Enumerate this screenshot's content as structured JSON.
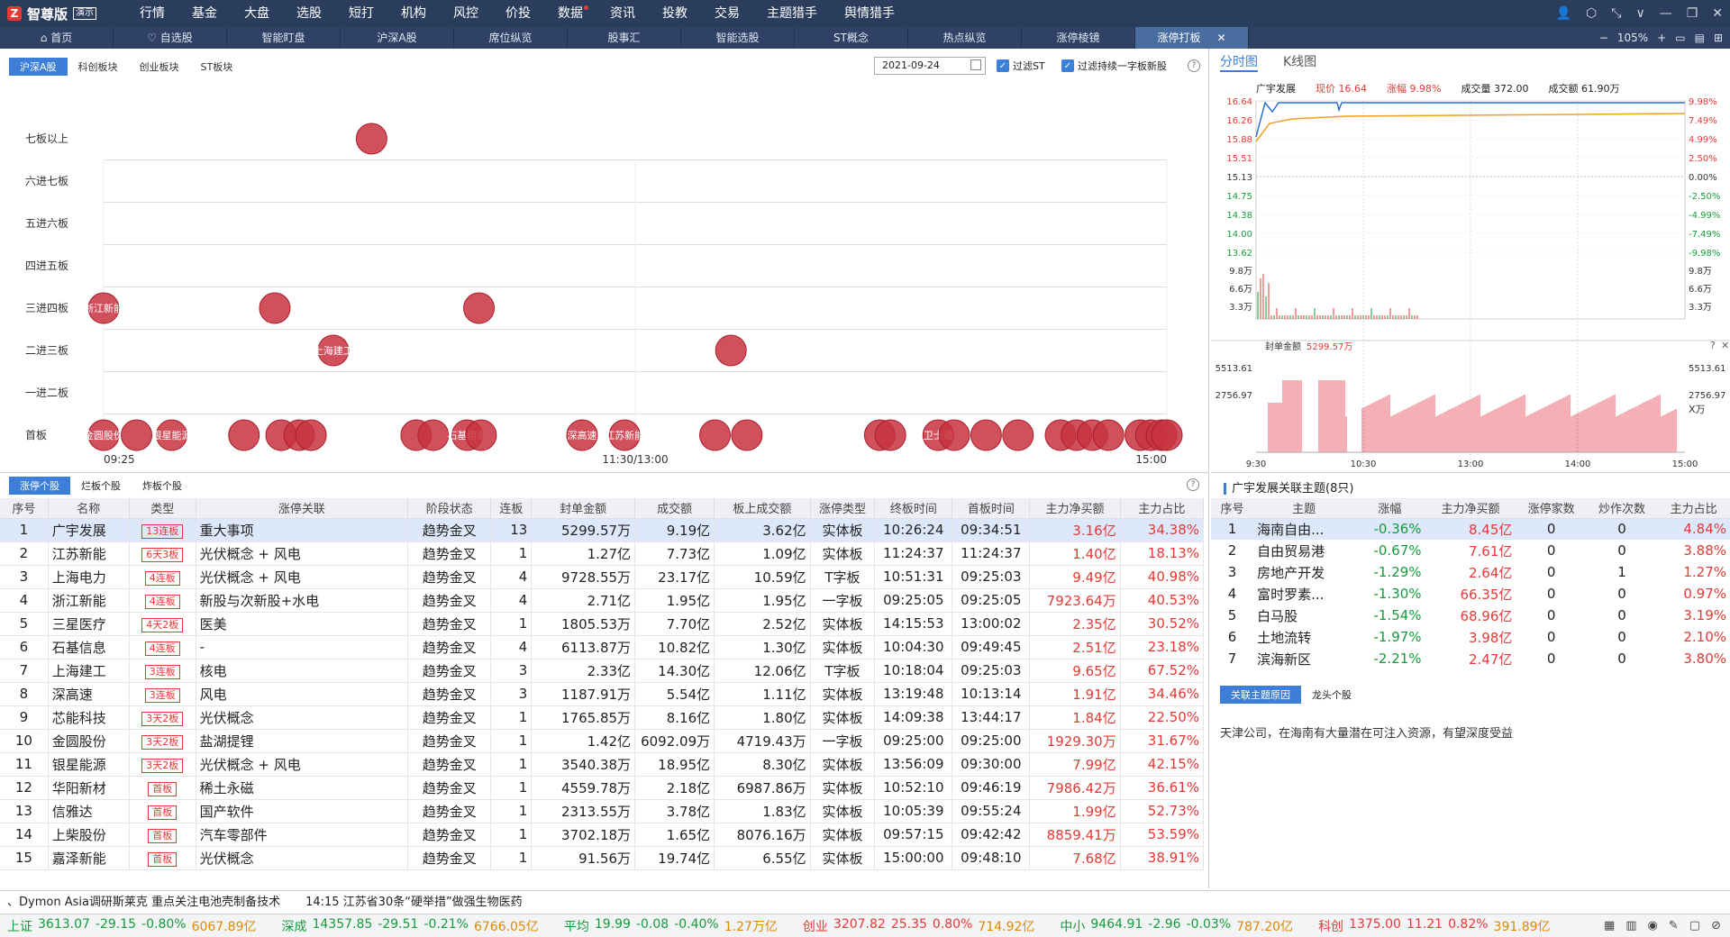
{
  "app": {
    "logo_mark": "Z",
    "name": "智尊版",
    "demo": "演示",
    "menu": [
      "行情",
      "基金",
      "大盘",
      "选股",
      "短打",
      "机构",
      "风控",
      "价投",
      "数据",
      "资讯",
      "投教",
      "交易",
      "主题猎手",
      "舆情猎手"
    ],
    "menu_dot_index": 8
  },
  "tabs": [
    {
      "label": "首页",
      "icon": "home-icon"
    },
    {
      "label": "自选股",
      "icon": "heart-icon"
    },
    {
      "label": "智能盯盘"
    },
    {
      "label": "沪深A股"
    },
    {
      "label": "席位纵览"
    },
    {
      "label": "股事汇"
    },
    {
      "label": "智能选股"
    },
    {
      "label": "ST概念"
    },
    {
      "label": "热点纵览"
    },
    {
      "label": "涨停棱镜"
    },
    {
      "label": "涨停打板",
      "active": true,
      "close": "✕"
    }
  ],
  "zoom": "105%",
  "board": {
    "subtabs": [
      "沪深A股",
      "科创板块",
      "创业板块",
      "ST板块"
    ],
    "date": "2021-09-24",
    "filter1": "过滤ST",
    "filter2": "过滤持续一字板新股",
    "levels": [
      "七板以上",
      "六进七板",
      "五进六板",
      "四进五板",
      "三进四板",
      "二进三板",
      "一进二板",
      "首板"
    ],
    "time_axis": [
      "09:25",
      "11:30/13:00",
      "15:00"
    ],
    "bubbles": [
      {
        "level": 0,
        "t": 0.252
      },
      {
        "level": 4,
        "t": 0.0,
        "label": "浙江新能"
      },
      {
        "level": 4,
        "t": 0.161
      },
      {
        "level": 4,
        "t": 0.353
      },
      {
        "level": 5,
        "t": 0.216,
        "label": "上海建工"
      },
      {
        "level": 5,
        "t": 0.59
      },
      {
        "level": 7,
        "t": 0.0,
        "label": "金圆股份"
      },
      {
        "level": 7,
        "t": 0.031
      },
      {
        "level": 7,
        "t": 0.064,
        "label": "银星能源"
      },
      {
        "level": 7,
        "t": 0.132
      },
      {
        "level": 7,
        "t": 0.167
      },
      {
        "level": 7,
        "t": 0.184
      },
      {
        "level": 7,
        "t": 0.195
      },
      {
        "level": 7,
        "t": 0.294
      },
      {
        "level": 7,
        "t": 0.31
      },
      {
        "level": 7,
        "t": 0.342,
        "label": "石基信息"
      },
      {
        "level": 7,
        "t": 0.355
      },
      {
        "level": 7,
        "t": 0.45,
        "label": "深高速"
      },
      {
        "level": 7,
        "t": 0.49,
        "label": "江苏新能"
      },
      {
        "level": 7,
        "t": 0.575
      },
      {
        "level": 7,
        "t": 0.605
      },
      {
        "level": 7,
        "t": 0.73
      },
      {
        "level": 7,
        "t": 0.74
      },
      {
        "level": 7,
        "t": 0.785,
        "label": "卫士通"
      },
      {
        "level": 7,
        "t": 0.8
      },
      {
        "level": 7,
        "t": 0.83
      },
      {
        "level": 7,
        "t": 0.86
      },
      {
        "level": 7,
        "t": 0.9
      },
      {
        "level": 7,
        "t": 0.915
      },
      {
        "level": 7,
        "t": 0.93
      },
      {
        "level": 7,
        "t": 0.945
      },
      {
        "level": 7,
        "t": 0.975
      },
      {
        "level": 7,
        "t": 0.985
      },
      {
        "level": 7,
        "t": 0.995
      },
      {
        "level": 7,
        "t": 1.0
      }
    ]
  },
  "fenshi": {
    "tabs": [
      "分时图",
      "K线图"
    ],
    "stock": "广宇发展",
    "price_label": "现价 16.64",
    "chg_label": "涨幅 9.98%",
    "vol_label": "成交量 372.00",
    "amt_label": "成交额 61.90万",
    "price_ticks": [
      "16.64",
      "16.26",
      "15.88",
      "15.51",
      "15.13",
      "14.75",
      "14.38",
      "14.00",
      "13.62"
    ],
    "pct_ticks": [
      "9.98%",
      "7.49%",
      "4.99%",
      "2.50%",
      "0.00%",
      "-2.50%",
      "-4.99%",
      "-7.49%",
      "-9.98%"
    ],
    "vol_ticks": [
      "9.8万",
      "6.6万",
      "3.3万"
    ],
    "seal_label": "封单金额",
    "seal_value": "5299.57万",
    "seal_ticks": [
      "5513.61",
      "2756.97"
    ],
    "seal_unit": "X万",
    "time_ticks": [
      "9:30",
      "10:30",
      "13:00",
      "14:00",
      "15:00"
    ]
  },
  "limitup": {
    "tabs": [
      "涨停个股",
      "烂板个股",
      "炸板个股"
    ],
    "headers": [
      "序号",
      "名称",
      "类型",
      "涨停关联",
      "阶段状态",
      "连板",
      "封单金额",
      "成交额",
      "板上成交额",
      "涨停类型",
      "终板时间",
      "首板时间",
      "主力净买额",
      "主力占比"
    ],
    "rows": [
      [
        "1",
        "广宇发展",
        "13连板",
        "重大事项",
        "趋势金叉",
        "13",
        "5299.57万",
        "9.19亿",
        "3.62亿",
        "实体板",
        "10:26:24",
        "09:34:51",
        "3.16亿",
        "34.38%"
      ],
      [
        "2",
        "江苏新能",
        "6天3板",
        "光伏概念 + 风电",
        "趋势金叉",
        "1",
        "1.27亿",
        "7.73亿",
        "1.09亿",
        "实体板",
        "11:24:37",
        "11:24:37",
        "1.40亿",
        "18.13%"
      ],
      [
        "3",
        "上海电力",
        "4连板",
        "光伏概念 + 风电",
        "趋势金叉",
        "4",
        "9728.55万",
        "23.17亿",
        "10.59亿",
        "T字板",
        "10:51:31",
        "09:25:03",
        "9.49亿",
        "40.98%"
      ],
      [
        "4",
        "浙江新能",
        "4连板",
        "新股与次新股+水电",
        "趋势金叉",
        "4",
        "2.71亿",
        "1.95亿",
        "1.95亿",
        "一字板",
        "09:25:05",
        "09:25:05",
        "7923.64万",
        "40.53%"
      ],
      [
        "5",
        "三星医疗",
        "4天2板",
        "医美",
        "趋势金叉",
        "1",
        "1805.53万",
        "7.70亿",
        "2.52亿",
        "实体板",
        "14:15:53",
        "13:00:02",
        "2.35亿",
        "30.52%"
      ],
      [
        "6",
        "石基信息",
        "4连板",
        "-",
        "趋势金叉",
        "4",
        "6113.87万",
        "10.82亿",
        "1.30亿",
        "实体板",
        "10:04:30",
        "09:49:45",
        "2.51亿",
        "23.18%"
      ],
      [
        "7",
        "上海建工",
        "3连板",
        "核电",
        "趋势金叉",
        "3",
        "2.33亿",
        "14.30亿",
        "12.06亿",
        "T字板",
        "10:18:04",
        "09:25:03",
        "9.65亿",
        "67.52%"
      ],
      [
        "8",
        "深高速",
        "3连板",
        "风电",
        "趋势金叉",
        "3",
        "1187.91万",
        "5.54亿",
        "1.11亿",
        "实体板",
        "13:19:48",
        "10:13:14",
        "1.91亿",
        "34.46%"
      ],
      [
        "9",
        "芯能科技",
        "3天2板",
        "光伏概念",
        "趋势金叉",
        "1",
        "1765.85万",
        "8.16亿",
        "1.80亿",
        "实体板",
        "14:09:38",
        "13:44:17",
        "1.84亿",
        "22.50%"
      ],
      [
        "10",
        "金圆股份",
        "3天2板",
        "盐湖提锂",
        "趋势金叉",
        "1",
        "1.42亿",
        "6092.09万",
        "4719.43万",
        "一字板",
        "09:25:00",
        "09:25:00",
        "1929.30万",
        "31.67%"
      ],
      [
        "11",
        "银星能源",
        "3天2板",
        "光伏概念 + 风电",
        "趋势金叉",
        "1",
        "3540.38万",
        "18.95亿",
        "8.30亿",
        "实体板",
        "13:56:09",
        "09:30:00",
        "7.99亿",
        "42.15%"
      ],
      [
        "12",
        "华阳新材",
        "首板",
        "稀土永磁",
        "趋势金叉",
        "1",
        "4559.78万",
        "2.18亿",
        "6987.86万",
        "实体板",
        "10:52:10",
        "09:46:19",
        "7986.42万",
        "36.61%"
      ],
      [
        "13",
        "信雅达",
        "首板",
        "国产软件",
        "趋势金叉",
        "1",
        "2313.55万",
        "3.78亿",
        "1.83亿",
        "实体板",
        "10:05:39",
        "09:55:24",
        "1.99亿",
        "52.73%"
      ],
      [
        "14",
        "上柴股份",
        "首板",
        "汽车零部件",
        "趋势金叉",
        "1",
        "3702.18万",
        "1.65亿",
        "8076.16万",
        "实体板",
        "09:57:15",
        "09:42:42",
        "8859.41万",
        "53.59%"
      ],
      [
        "15",
        "嘉泽新能",
        "首板",
        "光伏概念",
        "趋势金叉",
        "1",
        "91.56万",
        "19.74亿",
        "6.55亿",
        "实体板",
        "15:00:00",
        "09:48:10",
        "7.68亿",
        "38.91%"
      ]
    ]
  },
  "themes": {
    "title": "广宇发展关联主题(8只)",
    "headers": [
      "序号",
      "主题",
      "涨幅",
      "主力净买额",
      "涨停家数",
      "炒作次数",
      "主力占比"
    ],
    "rows": [
      [
        "1",
        "海南自由...",
        "-0.36%",
        "8.45亿",
        "0",
        "0",
        "4.84%"
      ],
      [
        "2",
        "自由贸易港",
        "-0.67%",
        "7.61亿",
        "0",
        "0",
        "3.88%"
      ],
      [
        "3",
        "房地产开发",
        "-1.29%",
        "2.64亿",
        "0",
        "1",
        "1.27%"
      ],
      [
        "4",
        "富时罗素...",
        "-1.30%",
        "66.35亿",
        "0",
        "0",
        "0.97%"
      ],
      [
        "5",
        "白马股",
        "-1.54%",
        "68.96亿",
        "0",
        "0",
        "3.19%"
      ],
      [
        "6",
        "土地流转",
        "-1.97%",
        "3.98亿",
        "0",
        "0",
        "2.10%"
      ],
      [
        "7",
        "滨海新区",
        "-2.21%",
        "2.47亿",
        "0",
        "0",
        "3.80%"
      ]
    ],
    "tabs": [
      "关联主题原因",
      "龙头个股"
    ],
    "reason": "天津公司，在海南有大量潜在可注入资源，有望深度受益"
  },
  "news": [
    "、Dymon Asia调研斯莱克 重点关注电池壳制备技术",
    "14:15 江苏省30条“硬举措”做强生物医药"
  ],
  "indices": [
    {
      "name": "上证",
      "value": "3613.07",
      "chg": "-29.15",
      "pct": "-0.80%",
      "amt": "6067.89亿"
    },
    {
      "name": "深成",
      "value": "14357.85",
      "chg": "-29.51",
      "pct": "-0.21%",
      "amt": "6766.05亿"
    },
    {
      "name": "平均",
      "value": "19.99",
      "chg": "-0.08",
      "pct": "-0.40%",
      "amt": "1.27万亿"
    },
    {
      "name": "创业",
      "value": "3207.82",
      "chg": "25.35",
      "pct": "0.80%",
      "amt": "714.92亿"
    },
    {
      "name": "中小",
      "value": "9464.91",
      "chg": "-2.96",
      "pct": "-0.03%",
      "amt": "787.20亿"
    },
    {
      "name": "科创",
      "value": "1375.00",
      "chg": "11.21",
      "pct": "0.82%",
      "amt": "391.89亿"
    }
  ],
  "colors": {
    "up": "#e53935",
    "down": "#169b3a",
    "accent": "#3d7fd8",
    "bubble": "#c8323f"
  }
}
